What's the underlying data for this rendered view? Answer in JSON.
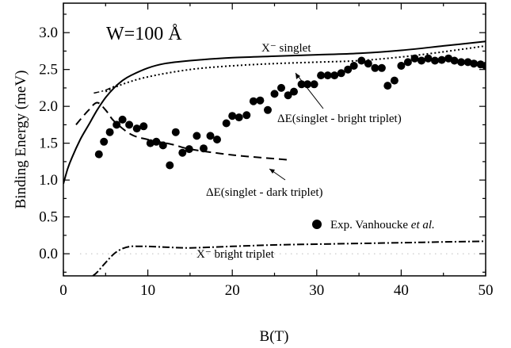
{
  "chart_data": {
    "type": "scatter",
    "title": "W=100 Å",
    "xlabel": "B(T)",
    "ylabel": "Binding Energy (meV)",
    "xlim": [
      0,
      50
    ],
    "ylim": [
      -0.3,
      3.4
    ],
    "xticks": [
      "0",
      "10",
      "20",
      "30",
      "40",
      "50"
    ],
    "yticks": [
      "0.0",
      "0.5",
      "1.0",
      "1.5",
      "2.0",
      "2.5",
      "3.0"
    ],
    "grid": false,
    "legend_position": "right-middle",
    "legend": [
      {
        "label": "Exp. Vanhoucke ",
        "label_italic": "et al.",
        "marker": "filled-circle"
      }
    ],
    "annotations": {
      "singlet": "X⁻ singlet",
      "bright_triplet": "X⁻ bright triplet",
      "delta_bright": "ΔE(singlet - bright triplet)",
      "delta_dark": "ΔE(singlet - dark triplet)"
    },
    "series": [
      {
        "name": "X⁻ singlet",
        "style": "solid",
        "x": [
          0,
          0.5,
          1,
          2,
          3,
          4,
          5,
          6,
          7,
          8,
          10,
          12,
          15,
          20,
          25,
          30,
          35,
          40,
          45,
          50
        ],
        "y": [
          0.95,
          1.15,
          1.3,
          1.55,
          1.75,
          1.95,
          2.12,
          2.25,
          2.35,
          2.42,
          2.52,
          2.58,
          2.62,
          2.66,
          2.68,
          2.7,
          2.72,
          2.76,
          2.82,
          2.88
        ]
      },
      {
        "name": "ΔE(singlet - bright triplet)",
        "style": "dotted",
        "x": [
          5,
          7,
          10,
          15,
          20,
          25,
          30,
          35,
          40,
          45,
          50
        ],
        "y": [
          2.2,
          2.3,
          2.4,
          2.5,
          2.55,
          2.58,
          2.6,
          2.62,
          2.67,
          2.74,
          2.82
        ]
      },
      {
        "name": "ΔE(singlet - dark triplet)",
        "style": "dashed",
        "x": [
          1.5,
          2,
          3,
          4,
          5,
          6,
          8,
          10,
          13,
          15,
          20,
          25,
          27
        ],
        "y": [
          1.75,
          1.82,
          1.95,
          2.05,
          1.95,
          1.8,
          1.62,
          1.55,
          1.48,
          1.42,
          1.34,
          1.29,
          1.27
        ]
      },
      {
        "name": "X⁻ bright triplet",
        "style": "dash-dot",
        "x": [
          3.5,
          4,
          5,
          6,
          7,
          8,
          9,
          10,
          12,
          15,
          20,
          25,
          30,
          35,
          40,
          45,
          50
        ],
        "y": [
          -0.3,
          -0.25,
          -0.12,
          0,
          0.07,
          0.1,
          0.1,
          0.1,
          0.09,
          0.08,
          0.1,
          0.12,
          0.13,
          0.14,
          0.15,
          0.16,
          0.17
        ]
      },
      {
        "name": "Exp. Vanhoucke et al.",
        "style": "markers",
        "x": [
          4.2,
          4.8,
          5.5,
          6.3,
          7.0,
          7.8,
          8.7,
          9.5,
          10.3,
          11.0,
          11.8,
          12.6,
          13.3,
          14.1,
          14.9,
          15.8,
          16.6,
          17.4,
          18.2,
          19.3,
          20.0,
          20.8,
          21.7,
          22.5,
          23.3,
          24.2,
          25.0,
          25.8,
          26.6,
          27.3,
          28.2,
          28.9,
          29.7,
          30.5,
          31.3,
          32.1,
          32.9,
          33.7,
          34.4,
          35.3,
          36.1,
          36.9,
          37.7,
          38.4,
          39.2,
          40.0,
          40.8,
          41.6,
          42.4,
          43.2,
          44.0,
          44.8,
          45.6,
          46.3,
          47.1,
          47.9,
          48.6,
          49.4,
          50.0
        ],
        "y": [
          1.35,
          1.52,
          1.65,
          1.75,
          1.82,
          1.75,
          1.7,
          1.73,
          1.5,
          1.52,
          1.47,
          1.2,
          1.65,
          1.37,
          1.42,
          1.6,
          1.43,
          1.6,
          1.55,
          1.77,
          1.87,
          1.85,
          1.88,
          2.07,
          2.08,
          1.95,
          2.17,
          2.25,
          2.15,
          2.2,
          2.3,
          2.3,
          2.3,
          2.42,
          2.42,
          2.42,
          2.45,
          2.5,
          2.55,
          2.62,
          2.58,
          2.52,
          2.52,
          2.28,
          2.35,
          2.55,
          2.6,
          2.65,
          2.62,
          2.65,
          2.62,
          2.63,
          2.65,
          2.62,
          2.6,
          2.6,
          2.58,
          2.57,
          2.55
        ]
      }
    ]
  }
}
